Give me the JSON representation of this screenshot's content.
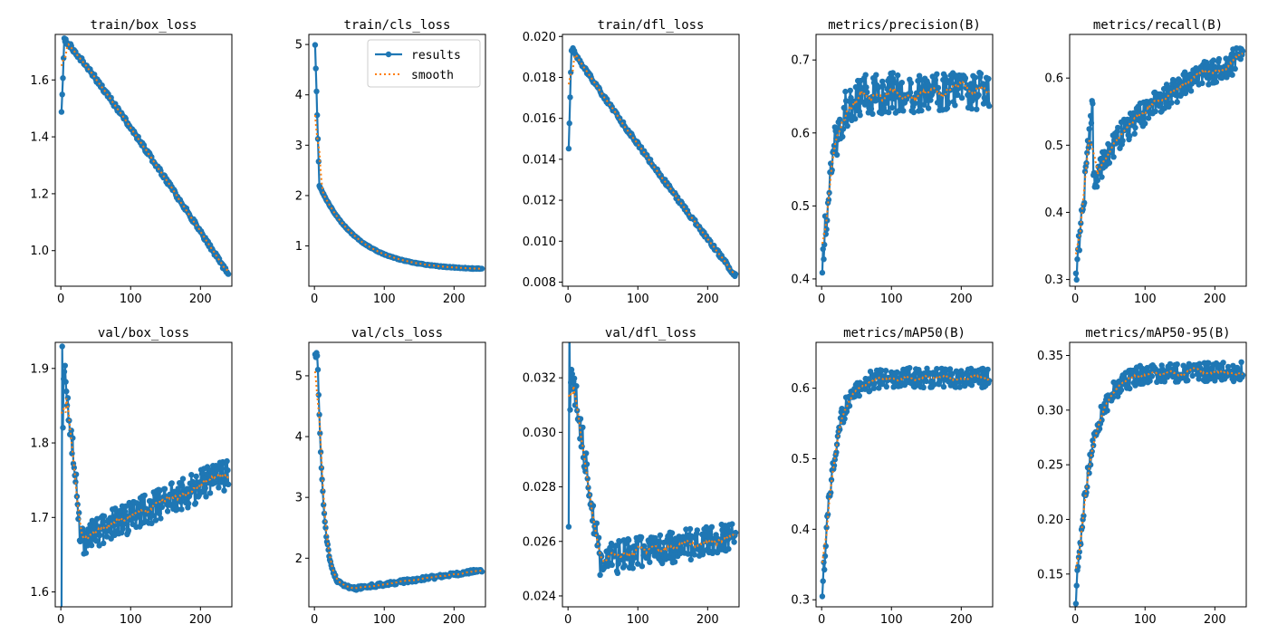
{
  "colors": {
    "results": "#1f77b4",
    "smooth": "#ff7f0e"
  },
  "legend": {
    "results_label": "results",
    "smooth_label": "smooth"
  },
  "chart_data": [
    {
      "type": "line",
      "title": "train/box_loss",
      "xlim": [
        -8,
        245
      ],
      "ylim": [
        0.875,
        1.76
      ],
      "xticks": [
        0,
        100,
        200
      ],
      "yticks": [
        1.0,
        1.2,
        1.4,
        1.6
      ],
      "xtick_labels": [
        "0",
        "100",
        "200"
      ],
      "ytick_labels": [
        "1.0",
        "1.2",
        "1.4",
        "1.6"
      ],
      "shape": {
        "kind": "decay",
        "start": 1.48,
        "peak": 1.74,
        "end": 0.915,
        "power": 1.08,
        "noise": 0.008,
        "seed": 3
      }
    },
    {
      "type": "line",
      "title": "train/cls_loss",
      "xlim": [
        -8,
        245
      ],
      "ylim": [
        0.2,
        5.2
      ],
      "xticks": [
        0,
        100,
        200
      ],
      "yticks": [
        1,
        2,
        3,
        4,
        5
      ],
      "xtick_labels": [
        "0",
        "100",
        "200"
      ],
      "ytick_labels": [
        "1",
        "2",
        "3",
        "4",
        "5"
      ],
      "legend": true,
      "shape": {
        "kind": "expdecay",
        "start": 5.0,
        "mid": 2.2,
        "end": 0.52,
        "rate": 0.018,
        "noise": 0.01,
        "seed": 7
      }
    },
    {
      "type": "line",
      "title": "train/dfl_loss",
      "xlim": [
        -8,
        245
      ],
      "ylim": [
        0.0078,
        0.0201
      ],
      "xticks": [
        0,
        100,
        200
      ],
      "yticks": [
        0.008,
        0.01,
        0.012,
        0.014,
        0.016,
        0.018,
        0.02
      ],
      "xtick_labels": [
        "0",
        "100",
        "200"
      ],
      "ytick_labels": [
        "0.008",
        "0.010",
        "0.012",
        "0.014",
        "0.016",
        "0.018",
        "0.020"
      ],
      "shape": {
        "kind": "decay",
        "start": 0.0146,
        "peak": 0.0194,
        "end": 0.0083,
        "power": 0.95,
        "noise": 0.0001,
        "seed": 11
      }
    },
    {
      "type": "line",
      "title": "metrics/precision(B)",
      "xlim": [
        -8,
        245
      ],
      "ylim": [
        0.39,
        0.735
      ],
      "xticks": [
        0,
        100,
        200
      ],
      "yticks": [
        0.4,
        0.5,
        0.6,
        0.7
      ],
      "xtick_labels": [
        "0",
        "100",
        "200"
      ],
      "ytick_labels": [
        "0.4",
        "0.5",
        "0.6",
        "0.7"
      ],
      "shape": {
        "kind": "rise",
        "start": 0.4,
        "plateau": 0.655,
        "rate": 0.07,
        "noise": 0.028,
        "seed": 13
      }
    },
    {
      "type": "line",
      "title": "metrics/recall(B)",
      "xlim": [
        -8,
        245
      ],
      "ylim": [
        0.29,
        0.665
      ],
      "xticks": [
        0,
        100,
        200
      ],
      "yticks": [
        0.3,
        0.4,
        0.5,
        0.6
      ],
      "xtick_labels": [
        "0",
        "100",
        "200"
      ],
      "ytick_labels": [
        "0.3",
        "0.4",
        "0.5",
        "0.6"
      ],
      "shape": {
        "kind": "log",
        "start": 0.3,
        "at20": 0.52,
        "end": 0.63,
        "noise": 0.02,
        "seed": 17
      }
    },
    {
      "type": "line",
      "title": "val/box_loss",
      "xlim": [
        -8,
        245
      ],
      "ylim": [
        1.58,
        1.935
      ],
      "xticks": [
        0,
        100,
        200
      ],
      "yticks": [
        1.6,
        1.7,
        1.8,
        1.9
      ],
      "xtick_labels": [
        "0",
        "100",
        "200"
      ],
      "ytick_labels": [
        "1.6",
        "1.7",
        "1.8",
        "1.9"
      ],
      "shape": {
        "kind": "vshape",
        "start": 1.59,
        "spike": 1.92,
        "low": 1.67,
        "lowx": 28,
        "end": 1.76,
        "noise": 0.022,
        "seed": 19
      }
    },
    {
      "type": "line",
      "title": "val/cls_loss",
      "xlim": [
        -8,
        245
      ],
      "ylim": [
        1.2,
        5.55
      ],
      "xticks": [
        0,
        100,
        200
      ],
      "yticks": [
        2,
        3,
        4,
        5
      ],
      "xtick_labels": [
        "0",
        "100",
        "200"
      ],
      "ytick_labels": [
        "2",
        "3",
        "4",
        "5"
      ],
      "shape": {
        "kind": "vshape",
        "start": 5.38,
        "spike": 5.38,
        "low": 1.5,
        "lowx": 55,
        "end": 1.8,
        "noise": 0.03,
        "seed": 23,
        "fast": true
      }
    },
    {
      "type": "line",
      "title": "val/dfl_loss",
      "xlim": [
        -8,
        245
      ],
      "ylim": [
        0.0236,
        0.0333
      ],
      "xticks": [
        0,
        100,
        200
      ],
      "yticks": [
        0.024,
        0.026,
        0.028,
        0.03,
        0.032
      ],
      "xtick_labels": [
        "0",
        "100",
        "200"
      ],
      "ytick_labels": [
        "0.024",
        "0.026",
        "0.028",
        "0.030",
        "0.032"
      ],
      "shape": {
        "kind": "vshape",
        "start": 0.0249,
        "spike": 0.033,
        "low": 0.0253,
        "lowx": 45,
        "end": 0.0262,
        "noise": 0.0006,
        "seed": 29
      }
    },
    {
      "type": "line",
      "title": "metrics/mAP50(B)",
      "xlim": [
        -8,
        245
      ],
      "ylim": [
        0.29,
        0.665
      ],
      "xticks": [
        0,
        100,
        200
      ],
      "yticks": [
        0.3,
        0.4,
        0.5,
        0.6
      ],
      "xtick_labels": [
        "0",
        "100",
        "200"
      ],
      "ytick_labels": [
        "0.3",
        "0.4",
        "0.5",
        "0.6"
      ],
      "shape": {
        "kind": "rise",
        "start": 0.305,
        "plateau": 0.615,
        "rate": 0.06,
        "noise": 0.014,
        "seed": 31
      }
    },
    {
      "type": "line",
      "title": "metrics/mAP50-95(B)",
      "xlim": [
        -8,
        245
      ],
      "ylim": [
        0.12,
        0.362
      ],
      "xticks": [
        0,
        100,
        200
      ],
      "yticks": [
        0.15,
        0.2,
        0.25,
        0.3,
        0.35
      ],
      "xtick_labels": [
        "0",
        "100",
        "200"
      ],
      "ytick_labels": [
        "0.15",
        "0.20",
        "0.25",
        "0.30",
        "0.35"
      ],
      "shape": {
        "kind": "rise",
        "start": 0.13,
        "plateau": 0.335,
        "rate": 0.045,
        "noise": 0.009,
        "seed": 37
      }
    }
  ]
}
